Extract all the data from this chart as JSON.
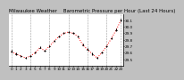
{
  "title": "Milwaukee Weather    Barometric Pressure per Hour (Last 24 Hours)",
  "background_color": "#c0c0c0",
  "plot_bg_color": "#ffffff",
  "hours": [
    0,
    1,
    2,
    3,
    4,
    5,
    6,
    7,
    8,
    9,
    10,
    11,
    12,
    13,
    14,
    15,
    16,
    17,
    18,
    19,
    20,
    21,
    22,
    23
  ],
  "pressure": [
    29.62,
    29.58,
    29.55,
    29.52,
    29.55,
    29.6,
    29.68,
    29.63,
    29.7,
    29.78,
    29.85,
    29.9,
    29.92,
    29.9,
    29.85,
    29.72,
    29.65,
    29.58,
    29.52,
    29.6,
    29.7,
    29.82,
    29.95,
    30.1
  ],
  "ylim": [
    29.4,
    30.2
  ],
  "ytick_values": [
    29.5,
    29.6,
    29.7,
    29.8,
    29.9,
    30.0,
    30.1
  ],
  "dot_color": "#000000",
  "line_color": "#ff0000",
  "grid_color": "#808080",
  "title_color": "#000000",
  "title_fontsize": 4.0,
  "tick_fontsize": 3.0,
  "ylabel_fontsize": 3.0,
  "grid_hours": [
    0,
    4,
    8,
    12,
    16,
    20,
    23
  ]
}
